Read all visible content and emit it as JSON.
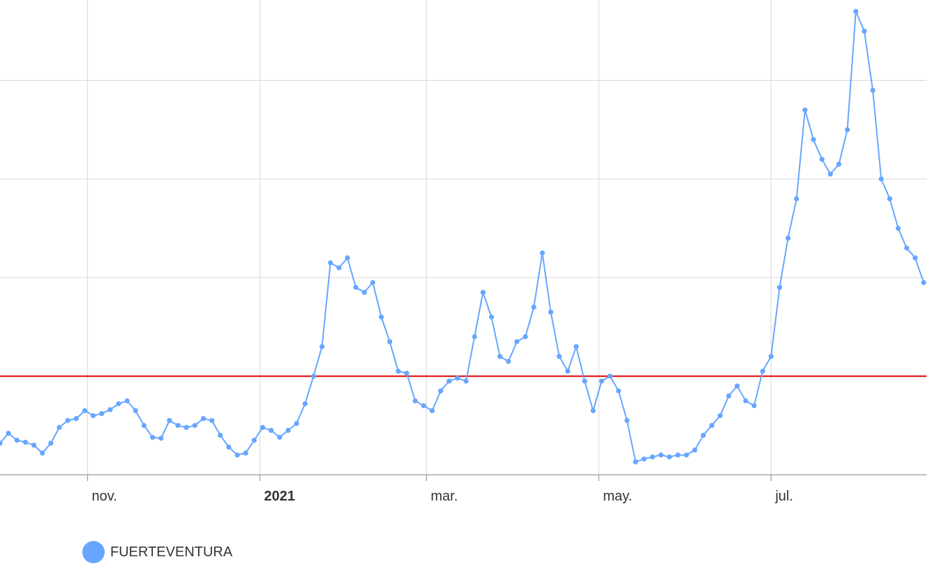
{
  "chart_data": {
    "type": "line",
    "title": "",
    "xlabel": "",
    "ylabel": "",
    "x_ticks": [
      {
        "label": "nov.",
        "date": "2020-11-01",
        "bold": false
      },
      {
        "label": "2021",
        "date": "2021-01-01",
        "bold": true
      },
      {
        "label": "mar.",
        "date": "2021-03-01",
        "bold": false
      },
      {
        "label": "may.",
        "date": "2021-05-01",
        "bold": false
      },
      {
        "label": "jul.",
        "date": "2021-07-01",
        "bold": false
      }
    ],
    "y_axis": {
      "ylim": [
        0,
        5.5
      ],
      "gridlines": [
        0,
        1,
        2,
        3,
        4,
        5
      ],
      "tick_labels_visible": false
    },
    "xlim": [
      "2020-10-01",
      "2021-08-25"
    ],
    "reference_line": {
      "value": 1,
      "color": "#dd0000"
    },
    "grid": true,
    "legend_position": "bottom-left",
    "series": [
      {
        "name": "FUERTEVENTURA",
        "color": "#66a6ff",
        "points": [
          [
            "2020-10-01",
            0.32
          ],
          [
            "2020-10-04",
            0.42
          ],
          [
            "2020-10-07",
            0.35
          ],
          [
            "2020-10-10",
            0.33
          ],
          [
            "2020-10-13",
            0.3
          ],
          [
            "2020-10-16",
            0.22
          ],
          [
            "2020-10-19",
            0.32
          ],
          [
            "2020-10-22",
            0.48
          ],
          [
            "2020-10-25",
            0.55
          ],
          [
            "2020-10-28",
            0.57
          ],
          [
            "2020-10-31",
            0.65
          ],
          [
            "2020-11-03",
            0.6
          ],
          [
            "2020-11-06",
            0.62
          ],
          [
            "2020-11-09",
            0.66
          ],
          [
            "2020-11-12",
            0.72
          ],
          [
            "2020-11-15",
            0.75
          ],
          [
            "2020-11-18",
            0.65
          ],
          [
            "2020-11-21",
            0.5
          ],
          [
            "2020-11-24",
            0.38
          ],
          [
            "2020-11-27",
            0.37
          ],
          [
            "2020-11-30",
            0.55
          ],
          [
            "2020-12-03",
            0.5
          ],
          [
            "2020-12-06",
            0.48
          ],
          [
            "2020-12-09",
            0.5
          ],
          [
            "2020-12-12",
            0.57
          ],
          [
            "2020-12-15",
            0.55
          ],
          [
            "2020-12-18",
            0.4
          ],
          [
            "2020-12-21",
            0.28
          ],
          [
            "2020-12-24",
            0.2
          ],
          [
            "2020-12-27",
            0.22
          ],
          [
            "2020-12-30",
            0.35
          ],
          [
            "2021-01-02",
            0.48
          ],
          [
            "2021-01-05",
            0.45
          ],
          [
            "2021-01-08",
            0.38
          ],
          [
            "2021-01-11",
            0.45
          ],
          [
            "2021-01-14",
            0.52
          ],
          [
            "2021-01-17",
            0.72
          ],
          [
            "2021-01-20",
            1.0
          ],
          [
            "2021-01-23",
            1.3
          ],
          [
            "2021-01-26",
            2.15
          ],
          [
            "2021-01-29",
            2.1
          ],
          [
            "2021-02-01",
            2.2
          ],
          [
            "2021-02-04",
            1.9
          ],
          [
            "2021-02-07",
            1.85
          ],
          [
            "2021-02-10",
            1.95
          ],
          [
            "2021-02-13",
            1.6
          ],
          [
            "2021-02-16",
            1.35
          ],
          [
            "2021-02-19",
            1.05
          ],
          [
            "2021-02-22",
            1.03
          ],
          [
            "2021-02-25",
            0.75
          ],
          [
            "2021-02-28",
            0.7
          ],
          [
            "2021-03-03",
            0.65
          ],
          [
            "2021-03-06",
            0.85
          ],
          [
            "2021-03-09",
            0.95
          ],
          [
            "2021-03-12",
            0.98
          ],
          [
            "2021-03-15",
            0.95
          ],
          [
            "2021-03-18",
            1.4
          ],
          [
            "2021-03-21",
            1.85
          ],
          [
            "2021-03-24",
            1.6
          ],
          [
            "2021-03-27",
            1.2
          ],
          [
            "2021-03-30",
            1.15
          ],
          [
            "2021-04-02",
            1.35
          ],
          [
            "2021-04-05",
            1.4
          ],
          [
            "2021-04-08",
            1.7
          ],
          [
            "2021-04-11",
            2.25
          ],
          [
            "2021-04-14",
            1.65
          ],
          [
            "2021-04-17",
            1.2
          ],
          [
            "2021-04-20",
            1.05
          ],
          [
            "2021-04-23",
            1.3
          ],
          [
            "2021-04-26",
            0.95
          ],
          [
            "2021-04-29",
            0.65
          ],
          [
            "2021-05-02",
            0.95
          ],
          [
            "2021-05-05",
            1.0
          ],
          [
            "2021-05-08",
            0.85
          ],
          [
            "2021-05-11",
            0.55
          ],
          [
            "2021-05-14",
            0.13
          ],
          [
            "2021-05-17",
            0.16
          ],
          [
            "2021-05-20",
            0.18
          ],
          [
            "2021-05-23",
            0.2
          ],
          [
            "2021-05-26",
            0.18
          ],
          [
            "2021-05-29",
            0.2
          ],
          [
            "2021-06-01",
            0.2
          ],
          [
            "2021-06-04",
            0.25
          ],
          [
            "2021-06-07",
            0.4
          ],
          [
            "2021-06-10",
            0.5
          ],
          [
            "2021-06-13",
            0.6
          ],
          [
            "2021-06-16",
            0.8
          ],
          [
            "2021-06-19",
            0.9
          ],
          [
            "2021-06-22",
            0.75
          ],
          [
            "2021-06-25",
            0.7
          ],
          [
            "2021-06-28",
            1.05
          ],
          [
            "2021-07-01",
            1.2
          ],
          [
            "2021-07-04",
            1.9
          ],
          [
            "2021-07-07",
            2.4
          ],
          [
            "2021-07-10",
            2.8
          ],
          [
            "2021-07-13",
            3.7
          ],
          [
            "2021-07-16",
            3.4
          ],
          [
            "2021-07-19",
            3.2
          ],
          [
            "2021-07-22",
            3.05
          ],
          [
            "2021-07-25",
            3.15
          ],
          [
            "2021-07-28",
            3.5
          ],
          [
            "2021-07-31",
            4.7
          ],
          [
            "2021-08-03",
            4.5
          ],
          [
            "2021-08-06",
            3.9
          ],
          [
            "2021-08-09",
            3.0
          ],
          [
            "2021-08-12",
            2.8
          ],
          [
            "2021-08-15",
            2.5
          ],
          [
            "2021-08-18",
            2.3
          ],
          [
            "2021-08-21",
            2.2
          ],
          [
            "2021-08-24",
            1.95
          ]
        ]
      }
    ]
  },
  "legend": {
    "label": "FUERTEVENTURA",
    "color": "#66a6ff"
  }
}
